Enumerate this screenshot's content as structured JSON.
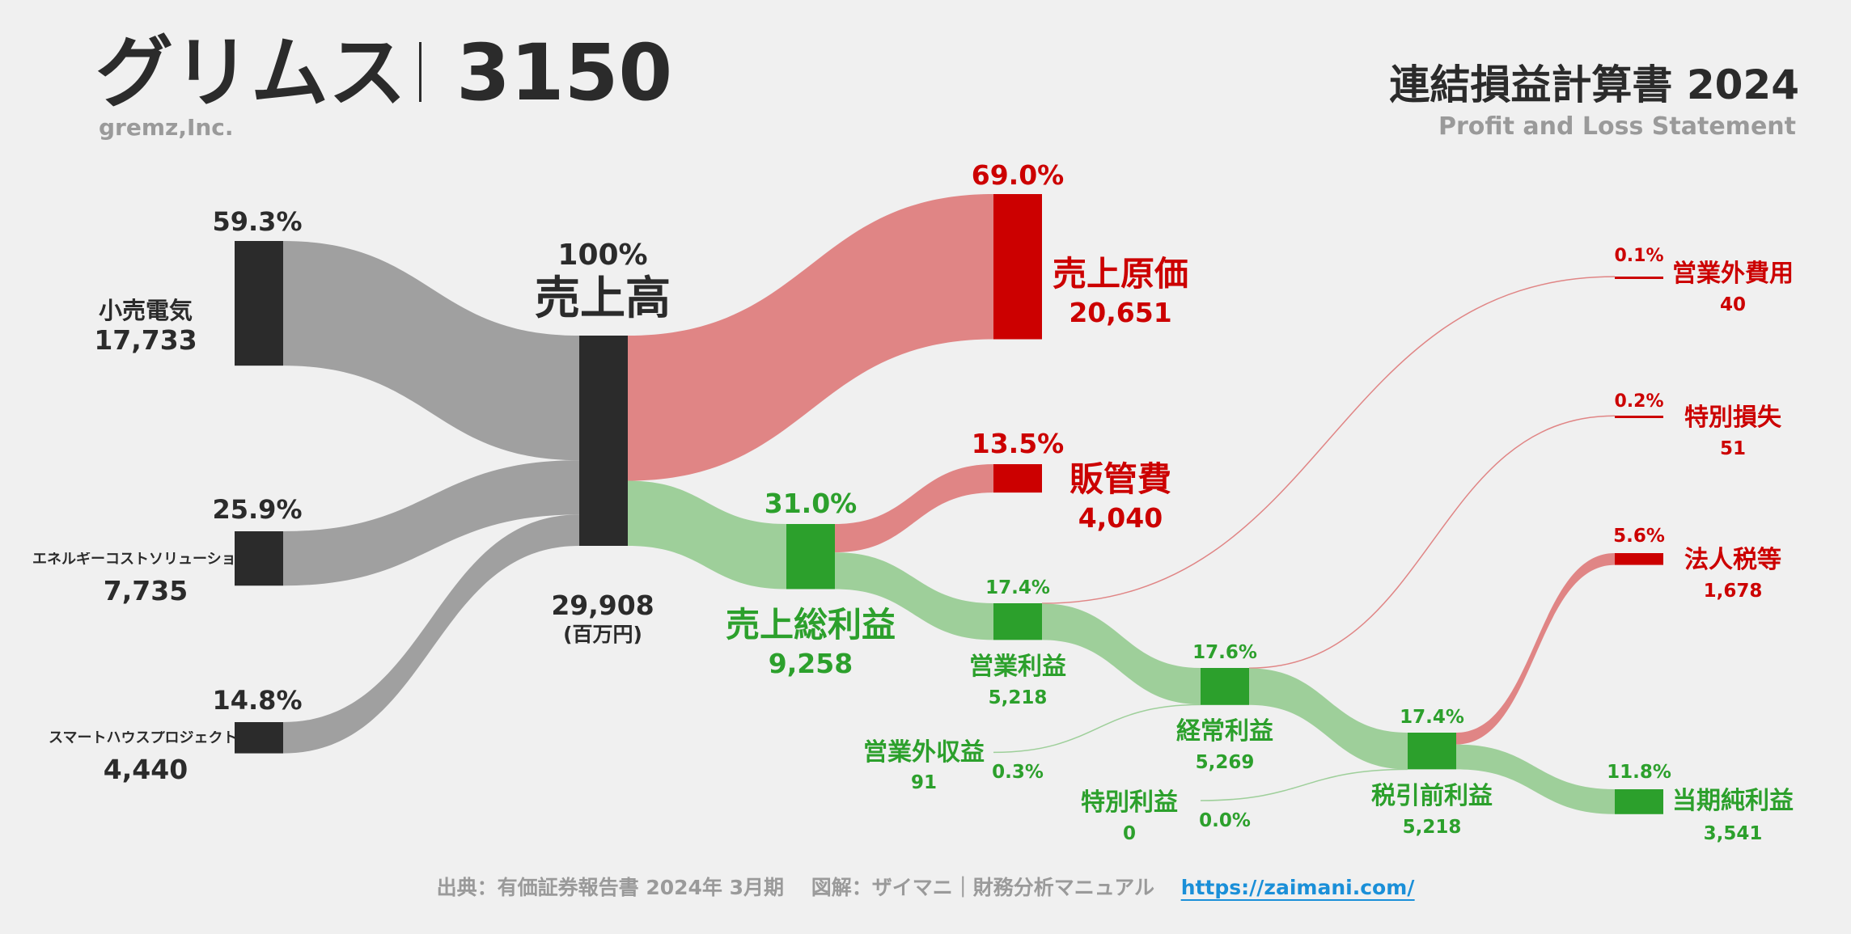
{
  "header": {
    "company": "グリムス",
    "code": "3150",
    "company_en": "gremz,Inc.",
    "statement_title": "連結損益計算書 2024",
    "statement_subtitle": "Profit and Loss Statement"
  },
  "footer": {
    "source": "出典：有価証券報告書 2024年 3月期　 図解：ザイマニ｜財務分析マニュアル",
    "link": "https://zaimani.com/"
  },
  "colors": {
    "node_dark": "#2b2b2b",
    "cost_red": "#cc0000",
    "cost_flow": "#e08585",
    "profit_green": "#2ca02c",
    "profit_flow": "#9ecf9a",
    "segment_flow": "#a0a0a0",
    "background": "#f0f0f0"
  },
  "chart_data": {
    "type": "sankey",
    "unit": "(百万円)",
    "nodes": [
      {
        "id": "retail",
        "label": "小売電気",
        "value": "17,733",
        "percent": "59.3%"
      },
      {
        "id": "energy",
        "label": "エネルギーコストソリューション",
        "value": "7,735",
        "percent": "25.9%"
      },
      {
        "id": "smart",
        "label": "スマートハウスプロジェクト",
        "value": "4,440",
        "percent": "14.8%"
      },
      {
        "id": "revenue",
        "label": "売上高",
        "value": "29,908",
        "percent": "100%"
      },
      {
        "id": "cogs",
        "label": "売上原価",
        "value": "20,651",
        "percent": "69.0%"
      },
      {
        "id": "gross",
        "label": "売上総利益",
        "value": "9,258",
        "percent": "31.0%"
      },
      {
        "id": "sga",
        "label": "販管費",
        "value": "4,040",
        "percent": "13.5%"
      },
      {
        "id": "op",
        "label": "営業利益",
        "value": "5,218",
        "percent": "17.4%"
      },
      {
        "id": "nonop_inc",
        "label": "営業外収益",
        "value": "91",
        "percent": "0.3%"
      },
      {
        "id": "nonop_exp",
        "label": "営業外費用",
        "value": "40",
        "percent": "0.1%"
      },
      {
        "id": "ordinary",
        "label": "経常利益",
        "value": "5,269",
        "percent": "17.6%"
      },
      {
        "id": "sp_gain",
        "label": "特別利益",
        "value": "0",
        "percent": "0.0%"
      },
      {
        "id": "sp_loss",
        "label": "特別損失",
        "value": "51",
        "percent": "0.2%"
      },
      {
        "id": "pretax",
        "label": "税引前利益",
        "value": "5,218",
        "percent": "17.4%"
      },
      {
        "id": "tax",
        "label": "法人税等",
        "value": "1,678",
        "percent": "5.6%"
      },
      {
        "id": "net",
        "label": "当期純利益",
        "value": "3,541",
        "percent": "11.8%"
      }
    ],
    "links": [
      {
        "source": "retail",
        "target": "revenue",
        "value": 17733
      },
      {
        "source": "energy",
        "target": "revenue",
        "value": 7735
      },
      {
        "source": "smart",
        "target": "revenue",
        "value": 4440
      },
      {
        "source": "revenue",
        "target": "cogs",
        "value": 20651
      },
      {
        "source": "revenue",
        "target": "gross",
        "value": 9258
      },
      {
        "source": "gross",
        "target": "sga",
        "value": 4040
      },
      {
        "source": "gross",
        "target": "op",
        "value": 5218
      },
      {
        "source": "op",
        "target": "nonop_exp",
        "value": 40
      },
      {
        "source": "op",
        "target": "ordinary",
        "value": 5178
      },
      {
        "source": "nonop_inc",
        "target": "ordinary",
        "value": 91
      },
      {
        "source": "ordinary",
        "target": "sp_loss",
        "value": 51
      },
      {
        "source": "ordinary",
        "target": "pretax",
        "value": 5218
      },
      {
        "source": "sp_gain",
        "target": "pretax",
        "value": 0
      },
      {
        "source": "pretax",
        "target": "tax",
        "value": 1678
      },
      {
        "source": "pretax",
        "target": "net",
        "value": 3541
      }
    ]
  }
}
